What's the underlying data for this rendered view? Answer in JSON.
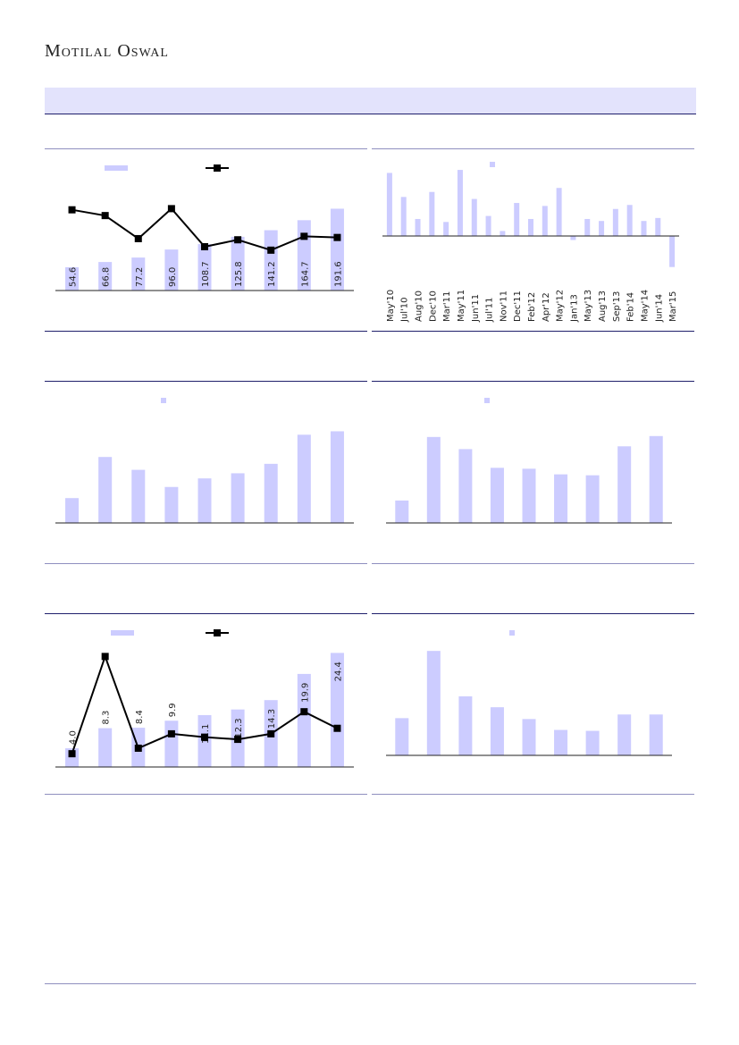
{
  "header": {
    "logo": "Motilal Oswal"
  },
  "colors": {
    "bar": "#ccccff",
    "line": "#000000",
    "axis": "#222222",
    "rule": "#1f1f6b"
  },
  "chart_data": [
    {
      "id": "c1",
      "type": "bar",
      "categories": [
        "",
        "",
        "",
        "",
        "",
        "",
        "",
        "",
        ""
      ],
      "values": [
        54.6,
        66.8,
        77.2,
        96.0,
        108.7,
        125.8,
        141.2,
        164.7,
        191.6
      ],
      "data_labels": [
        "54.6",
        "66.8",
        "77.2",
        "96.0",
        "108.7",
        "125.8",
        "141.2",
        "164.7",
        "191.6"
      ],
      "line_series": [
        70.0,
        65.0,
        45.0,
        71.0,
        38.0,
        44.0,
        35.0,
        47.0,
        46.0
      ],
      "legend": [
        "bar-series",
        "line-series"
      ],
      "title": "",
      "xlabel": "",
      "ylabel": "",
      "ylim": [
        0,
        270
      ],
      "line_ylim": [
        0,
        100
      ]
    },
    {
      "id": "c2",
      "type": "bar",
      "categories": [
        "May'10",
        "Jul'10",
        "Aug'10",
        "Dec'10",
        "Mar'11",
        "May'11",
        "Jun'11",
        "Jul'11",
        "Nov'11",
        "Dec'11",
        "Feb'12",
        "Apr'12",
        "May'12",
        "Jan'13",
        "May'13",
        "Aug'13",
        "Sep'13",
        "Feb'14",
        "May'14",
        "Jun'14",
        "Mar'15"
      ],
      "values": [
        63,
        39,
        17,
        44,
        14,
        66,
        37,
        20,
        5,
        33,
        17,
        30,
        48,
        -4,
        17,
        15,
        27,
        31,
        15,
        18,
        -31
      ],
      "legend": [
        "bar-series"
      ],
      "title": "",
      "xlabel": "",
      "ylabel": "",
      "ylim": [
        -35,
        75
      ]
    },
    {
      "id": "c3",
      "type": "bar",
      "categories": [
        "",
        "",
        "",
        "",
        "",
        "",
        "",
        "",
        ""
      ],
      "values": [
        29,
        77,
        62,
        42,
        52,
        58,
        69,
        103,
        107
      ],
      "legend": [
        "bar-series"
      ],
      "title": "",
      "xlabel": "",
      "ylabel": "",
      "ylim": [
        0,
        120
      ]
    },
    {
      "id": "c4",
      "type": "bar",
      "categories": [
        "",
        "",
        "",
        "",
        "",
        "",
        "",
        "",
        ""
      ],
      "values": [
        24,
        92,
        79,
        59,
        58,
        52,
        51,
        82,
        93
      ],
      "legend": [
        "bar-series"
      ],
      "title": "",
      "xlabel": "",
      "ylabel": "",
      "ylim": [
        0,
        110
      ]
    },
    {
      "id": "c5",
      "type": "bar",
      "categories": [
        "",
        "",
        "",
        "",
        "",
        "",
        "",
        "",
        ""
      ],
      "values": [
        4.0,
        8.3,
        8.4,
        9.9,
        11.1,
        12.3,
        14.3,
        19.9,
        24.4
      ],
      "data_labels": [
        "4.0",
        "8.3",
        "8.4",
        "9.9",
        "11.1",
        "12.3",
        "14.3",
        "19.9",
        "24.4"
      ],
      "line_series": [
        12,
        100,
        17,
        30,
        27,
        25,
        30,
        50,
        35
      ],
      "legend": [
        "bar-series",
        "line-series"
      ],
      "title": "",
      "xlabel": "",
      "ylabel": "",
      "ylim": [
        0,
        26
      ],
      "line_ylim": [
        0,
        110
      ]
    },
    {
      "id": "c6",
      "type": "bar",
      "categories": [
        "",
        "",
        "",
        "",
        "",
        "",
        "",
        "",
        ""
      ],
      "values": [
        41,
        115,
        65,
        53,
        40,
        28,
        27,
        45,
        45
      ],
      "legend": [
        "bar-series"
      ],
      "title": "",
      "xlabel": "",
      "ylabel": "",
      "ylim": [
        0,
        125
      ]
    }
  ]
}
